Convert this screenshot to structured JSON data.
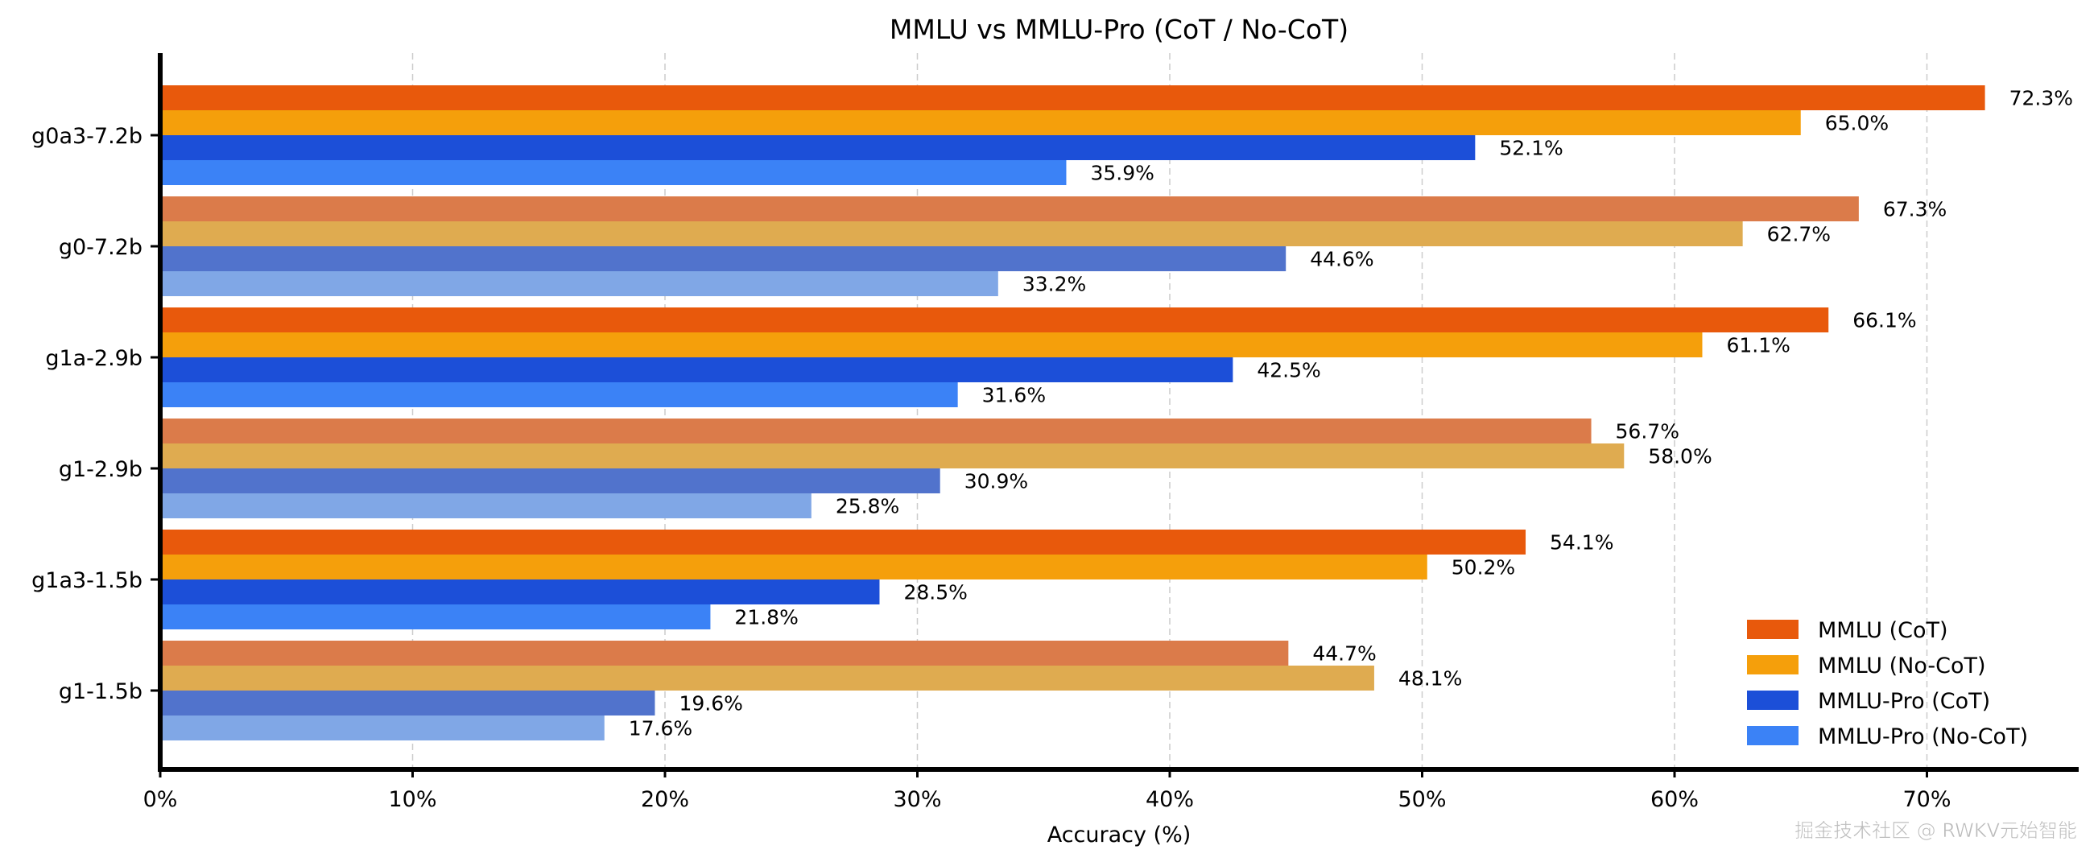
{
  "chart_data": {
    "type": "bar",
    "orientation": "horizontal",
    "title": "MMLU vs MMLU-Pro (CoT / No-CoT)",
    "xlabel": "Accuracy (%)",
    "ylabel": "",
    "xlim": [
      0,
      76
    ],
    "xticks": [
      0,
      10,
      20,
      30,
      40,
      50,
      60,
      70
    ],
    "xtick_labels": [
      "0%",
      "10%",
      "20%",
      "30%",
      "40%",
      "50%",
      "60%",
      "70%"
    ],
    "grid": "x dashed",
    "legend_position": "bottom-right",
    "categories": [
      "g0a3-7.2b",
      "g0-7.2b",
      "g1a-2.9b",
      "g1-2.9b",
      "g1a3-1.5b",
      "g1-1.5b"
    ],
    "faded_categories": [
      "g0-7.2b",
      "g1-2.9b",
      "g1-1.5b"
    ],
    "series": [
      {
        "name": "MMLU (CoT)",
        "color": "#e8590c",
        "faded_color": "#db7b4a",
        "values": [
          72.3,
          67.3,
          66.1,
          56.7,
          54.1,
          44.7
        ]
      },
      {
        "name": "MMLU (No-CoT)",
        "color": "#f59f0b",
        "faded_color": "#dfab50",
        "values": [
          65.0,
          62.7,
          61.1,
          58.0,
          50.2,
          48.1
        ]
      },
      {
        "name": "MMLU-Pro (CoT)",
        "color": "#1c4fd8",
        "faded_color": "#5173cc",
        "values": [
          52.1,
          44.6,
          42.5,
          30.9,
          28.5,
          19.6
        ]
      },
      {
        "name": "MMLU-Pro (No-CoT)",
        "color": "#3b82f6",
        "faded_color": "#80a7e6",
        "values": [
          35.9,
          33.2,
          31.6,
          25.8,
          21.8,
          17.6
        ]
      }
    ]
  },
  "watermark": "掘金技术社区 @ RWKV元始智能"
}
